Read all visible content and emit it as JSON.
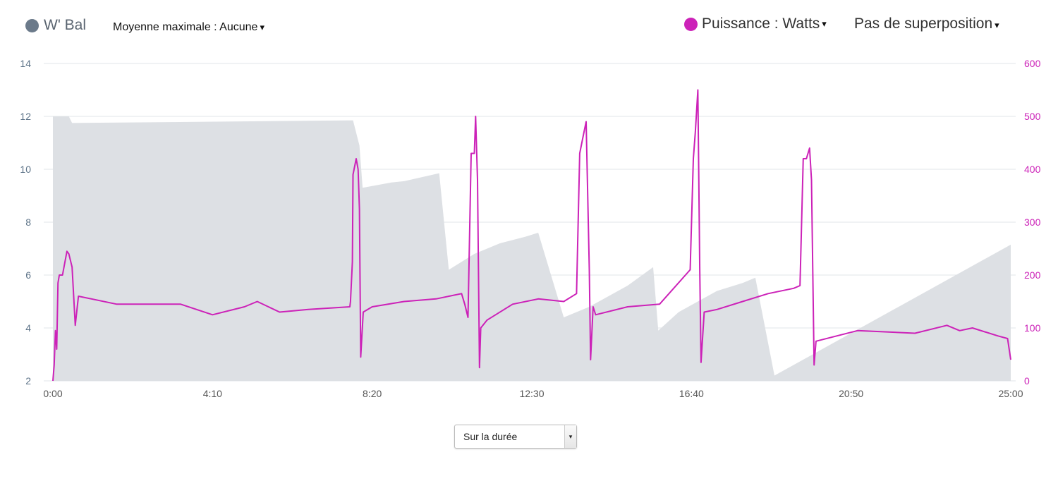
{
  "legend": {
    "wbal_label": "W' Bal",
    "wbal_color": "#6b7a8a",
    "max_avg_label": "Moyenne maximale : Aucune",
    "power_label": "Puissance : Watts",
    "power_color": "#cc22b8",
    "overlay_label": "Pas de superposition",
    "caret": "▾"
  },
  "footer": {
    "select_value": "Sur la durée",
    "select_arrow": "▾"
  },
  "chart_data": {
    "type": "area",
    "xlabel": "",
    "x_ticks": [
      "0:00",
      "4:10",
      "8:20",
      "12:30",
      "16:40",
      "20:50",
      "25:00"
    ],
    "x_range_seconds": [
      0,
      1500
    ],
    "left_axis": {
      "ticks": [
        2,
        4,
        6,
        8,
        10,
        12,
        14
      ],
      "ylim": [
        2,
        14
      ],
      "color": "#5d7388"
    },
    "right_axis": {
      "ticks": [
        0,
        100,
        200,
        300,
        400,
        500,
        600
      ],
      "ylim": [
        0,
        600
      ],
      "color": "#cc22b8"
    },
    "grid": true,
    "series": [
      {
        "name": "W' Bal",
        "axis": "left",
        "color": "#dde0e4",
        "x": [
          0,
          25,
          30,
          470,
          480,
          485,
          530,
          550,
          605,
          620,
          660,
          700,
          740,
          760,
          800,
          840,
          900,
          940,
          948,
          980,
          1040,
          1080,
          1100,
          1130,
          1500
        ],
        "y": [
          12.0,
          12.0,
          11.75,
          11.85,
          10.9,
          9.3,
          9.5,
          9.55,
          9.85,
          6.2,
          6.8,
          7.2,
          7.45,
          7.6,
          4.4,
          4.8,
          5.6,
          6.3,
          3.9,
          4.6,
          5.4,
          5.7,
          5.9,
          2.2,
          7.15
        ]
      },
      {
        "name": "Puissance",
        "axis": "right",
        "color": "#cc22b8",
        "x": [
          0,
          2,
          4,
          6,
          8,
          10,
          15,
          22,
          25,
          30,
          35,
          40,
          100,
          200,
          250,
          300,
          320,
          355,
          400,
          465,
          466,
          469,
          470,
          475,
          478,
          480,
          482,
          486,
          500,
          550,
          600,
          640,
          645,
          650,
          655,
          660,
          662,
          665,
          668,
          670,
          680,
          720,
          760,
          800,
          820,
          825,
          830,
          835,
          840,
          842,
          846,
          850,
          900,
          950,
          998,
          1003,
          1006,
          1010,
          1013,
          1015,
          1020,
          1040,
          1080,
          1120,
          1160,
          1170,
          1175,
          1180,
          1185,
          1188,
          1192,
          1195,
          1260,
          1350,
          1400,
          1420,
          1440,
          1480,
          1495,
          1500
        ],
        "y": [
          0,
          30,
          95,
          60,
          185,
          200,
          200,
          245,
          240,
          215,
          105,
          160,
          145,
          145,
          125,
          140,
          150,
          130,
          135,
          140,
          150,
          225,
          390,
          420,
          400,
          325,
          45,
          130,
          140,
          150,
          155,
          165,
          145,
          120,
          430,
          430,
          500,
          380,
          25,
          100,
          115,
          145,
          155,
          150,
          165,
          430,
          460,
          490,
          210,
          40,
          140,
          125,
          140,
          145,
          210,
          420,
          470,
          550,
          210,
          35,
          130,
          135,
          150,
          165,
          175,
          180,
          420,
          420,
          440,
          380,
          30,
          75,
          95,
          90,
          105,
          95,
          100,
          85,
          80,
          40
        ]
      }
    ]
  }
}
